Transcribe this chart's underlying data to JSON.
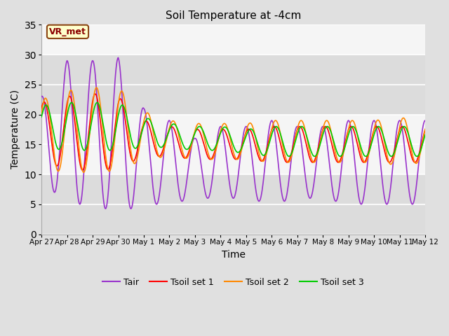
{
  "title": "Soil Temperature at -4cm",
  "xlabel": "Time",
  "ylabel": "Temperature (C)",
  "ylim": [
    0,
    35
  ],
  "yticks": [
    0,
    5,
    10,
    15,
    20,
    25,
    30,
    35
  ],
  "bg_color": "#e0e0e0",
  "plot_bg_color": "#f0f0f0",
  "grid_color": "white",
  "annotation_text": "VR_met",
  "annotation_bg": "#ffffcc",
  "annotation_border": "#8B4513",
  "annotation_text_color": "#8B0000",
  "colors": {
    "Tair": "#9933CC",
    "Tsoil_set1": "#FF0000",
    "Tsoil_set2": "#FF8800",
    "Tsoil_set3": "#00CC00"
  },
  "legend_labels": [
    "Tair",
    "Tsoil set 1",
    "Tsoil set 2",
    "Tsoil set 3"
  ],
  "x_tick_labels": [
    "Apr 27",
    "Apr 28",
    "Apr 29",
    "Apr 30",
    "May 1",
    "May 2",
    "May 3",
    "May 4",
    "May 5",
    "May 6",
    "May 7",
    "May 8",
    "May 9",
    "May 10",
    "May 11",
    "May 12"
  ],
  "line_width": 1.2,
  "band_colors": [
    "#dcdcdc",
    "#f5f5f5"
  ],
  "band_edges": [
    0,
    10,
    20,
    30,
    40
  ]
}
